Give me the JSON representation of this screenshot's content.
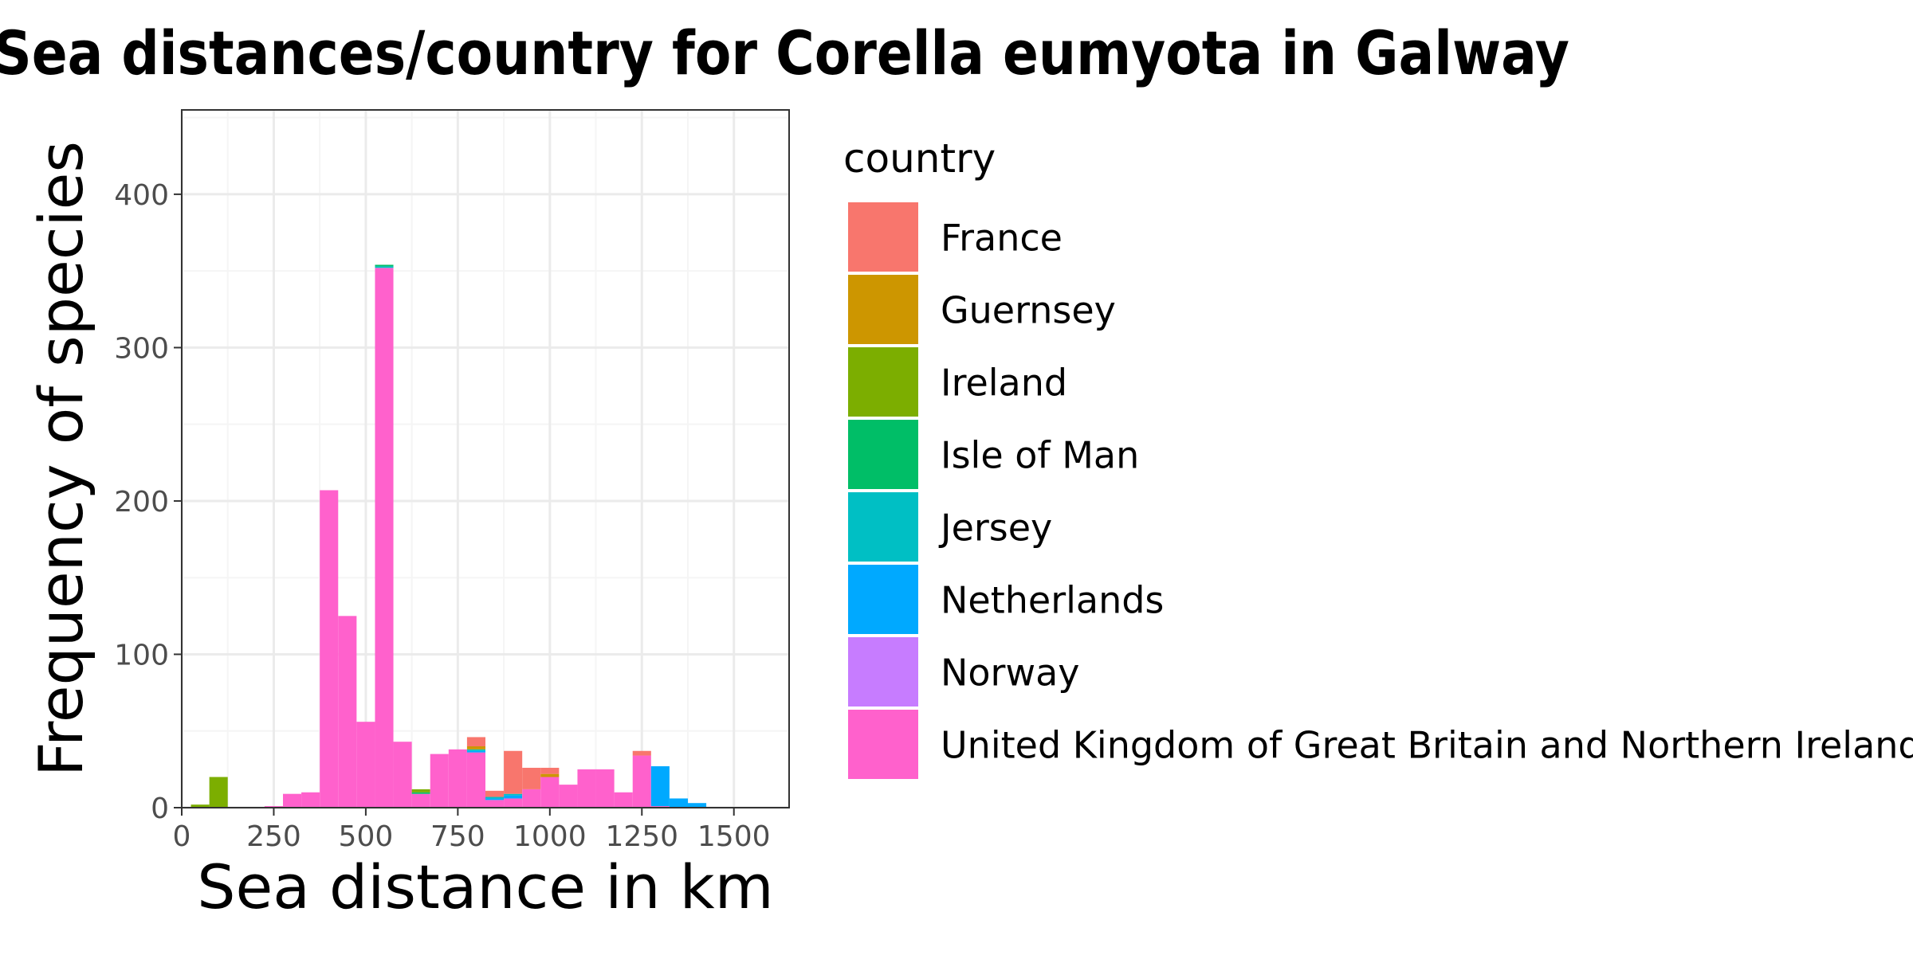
{
  "chart_data": {
    "type": "bar",
    "stacked": true,
    "title": "Sea distances/country for Corella eumyota in Galway",
    "xlabel": "Sea distance in km",
    "ylabel": "Frequency of species",
    "xlim": [
      0,
      1650
    ],
    "ylim": [
      0,
      455
    ],
    "x_ticks": [
      0,
      250,
      500,
      750,
      1000,
      1250,
      1500
    ],
    "y_ticks": [
      0,
      100,
      200,
      300,
      400
    ],
    "grid": true,
    "legend_position": "right",
    "legend_title": "country",
    "bin_width": 50,
    "bins": [
      50,
      100,
      150,
      200,
      250,
      300,
      350,
      400,
      450,
      500,
      550,
      600,
      650,
      700,
      750,
      800,
      850,
      900,
      950,
      1000,
      1050,
      1100,
      1150,
      1200,
      1250,
      1300,
      1350,
      1400
    ],
    "series": [
      {
        "name": "France",
        "color": "#F8766D",
        "values": [
          0,
          0,
          0,
          0,
          0,
          0,
          0,
          0,
          0,
          0,
          0,
          0,
          0,
          0,
          0,
          6,
          4,
          28,
          14,
          4,
          0,
          0,
          0,
          0,
          3,
          0,
          0,
          0
        ]
      },
      {
        "name": "Guernsey",
        "color": "#CD9600",
        "values": [
          0,
          0,
          0,
          0,
          0,
          0,
          0,
          0,
          0,
          0,
          0,
          0,
          0,
          0,
          0,
          2,
          0,
          0,
          0,
          2,
          0,
          0,
          0,
          0,
          0,
          0,
          0,
          0
        ]
      },
      {
        "name": "Ireland",
        "color": "#7CAE00",
        "values": [
          2,
          20,
          0,
          0,
          0,
          0,
          0,
          0,
          0,
          0,
          0,
          0,
          2,
          0,
          0,
          0,
          0,
          0,
          0,
          0,
          0,
          0,
          0,
          0,
          0,
          0,
          0,
          0
        ]
      },
      {
        "name": "Isle of Man",
        "color": "#00BE67",
        "values": [
          0,
          0,
          0,
          0,
          0,
          0,
          0,
          0,
          0,
          0,
          1,
          0,
          1,
          0,
          0,
          0,
          0,
          0,
          0,
          0,
          0,
          0,
          0,
          0,
          0,
          0,
          0,
          0
        ]
      },
      {
        "name": "Jersey",
        "color": "#00BFC4",
        "values": [
          0,
          0,
          0,
          0,
          0,
          0,
          0,
          0,
          0,
          0,
          1,
          0,
          0,
          0,
          0,
          1,
          1,
          1,
          0,
          0,
          0,
          0,
          0,
          0,
          0,
          0,
          0,
          0
        ]
      },
      {
        "name": "Netherlands",
        "color": "#00A9FF",
        "values": [
          0,
          0,
          0,
          0,
          0,
          0,
          0,
          0,
          0,
          0,
          0,
          0,
          0,
          0,
          0,
          1,
          1,
          2,
          0,
          0,
          0,
          0,
          0,
          0,
          0,
          26,
          6,
          3
        ]
      },
      {
        "name": "Norway",
        "color": "#C77CFF",
        "values": [
          0,
          0,
          0,
          0,
          0,
          0,
          0,
          0,
          0,
          0,
          0,
          0,
          0,
          0,
          0,
          0,
          0,
          0,
          0,
          0,
          0,
          0,
          0,
          0,
          0,
          0,
          0,
          0
        ]
      },
      {
        "name": "United Kingdom of Great Britain and Northern Ireland",
        "color": "#FF61CC",
        "values": [
          0,
          0,
          0,
          0,
          1,
          9,
          10,
          207,
          125,
          56,
          352,
          43,
          9,
          35,
          38,
          36,
          5,
          6,
          12,
          20,
          15,
          25,
          25,
          10,
          34,
          1,
          0,
          0
        ]
      }
    ]
  },
  "colors": {
    "panel_border": "#333333",
    "grid_major": "#EBEBEB",
    "grid_minor": "#F5F5F5",
    "tick_text": "#4D4D4D",
    "title_text": "#000000"
  }
}
